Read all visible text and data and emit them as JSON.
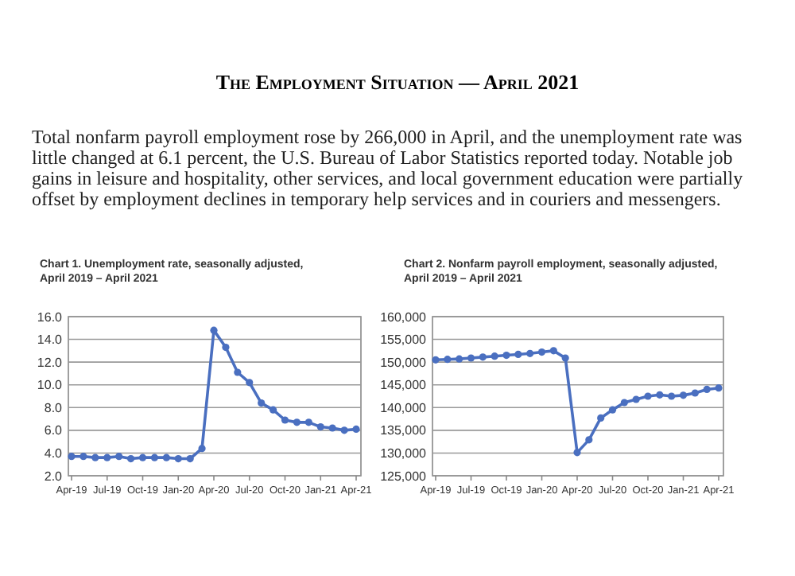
{
  "chart_data": [
    {
      "type": "other",
      "title": "The Employment Situation — April 2021",
      "annotations": [
        "Total nonfarm payroll employment rose by 266,000 in April, and the unemployment rate was little changed at 6.1 percent, the U.S. Bureau of Labor Statistics reported today. Notable job gains in leisure and hospitality, other services, and local government education were partially offset by employment declines in temporary help services and in couriers and messengers."
      ]
    },
    {
      "type": "line",
      "title": "Chart 1. Unemployment rate, seasonally adjusted,",
      "subtitle": "April 2019 – April 2021",
      "categories": [
        "Apr-19",
        null,
        null,
        "Jul-19",
        null,
        null,
        "Oct-19",
        null,
        null,
        "Jan-20",
        null,
        null,
        "Apr-20",
        null,
        null,
        "Jul-20",
        null,
        null,
        "Oct-20",
        null,
        null,
        "Jan-21",
        null,
        null,
        "Apr-21"
      ],
      "series": [
        {
          "color": "#4a6fc0",
          "values": [
            3.7,
            3.7,
            3.6,
            3.6,
            3.7,
            3.5,
            3.6,
            3.6,
            3.6,
            3.5,
            3.5,
            4.4,
            14.8,
            13.3,
            11.1,
            10.2,
            8.4,
            7.8,
            6.9,
            6.7,
            6.7,
            6.3,
            6.2,
            6.0,
            6.1
          ]
        }
      ],
      "ylim": [
        2,
        16
      ],
      "yticks": [
        {
          "value": 2,
          "label": "2.0"
        },
        {
          "value": 4,
          "label": "4.0"
        },
        {
          "value": 6,
          "label": "6.0"
        },
        {
          "value": 8,
          "label": "8.0"
        },
        {
          "value": 10,
          "label": "10.0"
        },
        {
          "value": 12,
          "label": "12.0"
        },
        {
          "value": 14,
          "label": "14.0"
        },
        {
          "value": 16,
          "label": "16.0"
        }
      ],
      "grid": "y",
      "marker": "circle",
      "line_style": "solid"
    },
    {
      "type": "line",
      "title": "Chart 2. Nonfarm payroll employment, seasonally adjusted,",
      "subtitle": "April 2019 – April 2021",
      "categories": [
        "Apr-19",
        null,
        null,
        "Jul-19",
        null,
        null,
        "Oct-19",
        null,
        null,
        "Jan-20",
        null,
        null,
        "Apr-20",
        null,
        null,
        "Jul-20",
        null,
        null,
        "Oct-20",
        null,
        null,
        "Jan-21",
        null,
        null,
        "Apr-21"
      ],
      "series": [
        {
          "color": "#4a6fc0",
          "values": [
            150500,
            150600,
            150700,
            150900,
            151100,
            151300,
            151500,
            151700,
            151900,
            152200,
            152500,
            150900,
            130100,
            132900,
            137700,
            139500,
            141100,
            141800,
            142500,
            142800,
            142500,
            142700,
            143200,
            144000,
            144300
          ]
        }
      ],
      "ylim": [
        125000,
        160000
      ],
      "yticks": [
        {
          "value": 125000,
          "label": "125,000"
        },
        {
          "value": 130000,
          "label": "130,000"
        },
        {
          "value": 135000,
          "label": "135,000"
        },
        {
          "value": 140000,
          "label": "140,000"
        },
        {
          "value": 145000,
          "label": "145,000"
        },
        {
          "value": 150000,
          "label": "150,000"
        },
        {
          "value": 155000,
          "label": "155,000"
        },
        {
          "value": 160000,
          "label": "160,000"
        }
      ],
      "grid": "y",
      "marker": "circle",
      "line_style": "solid"
    }
  ]
}
